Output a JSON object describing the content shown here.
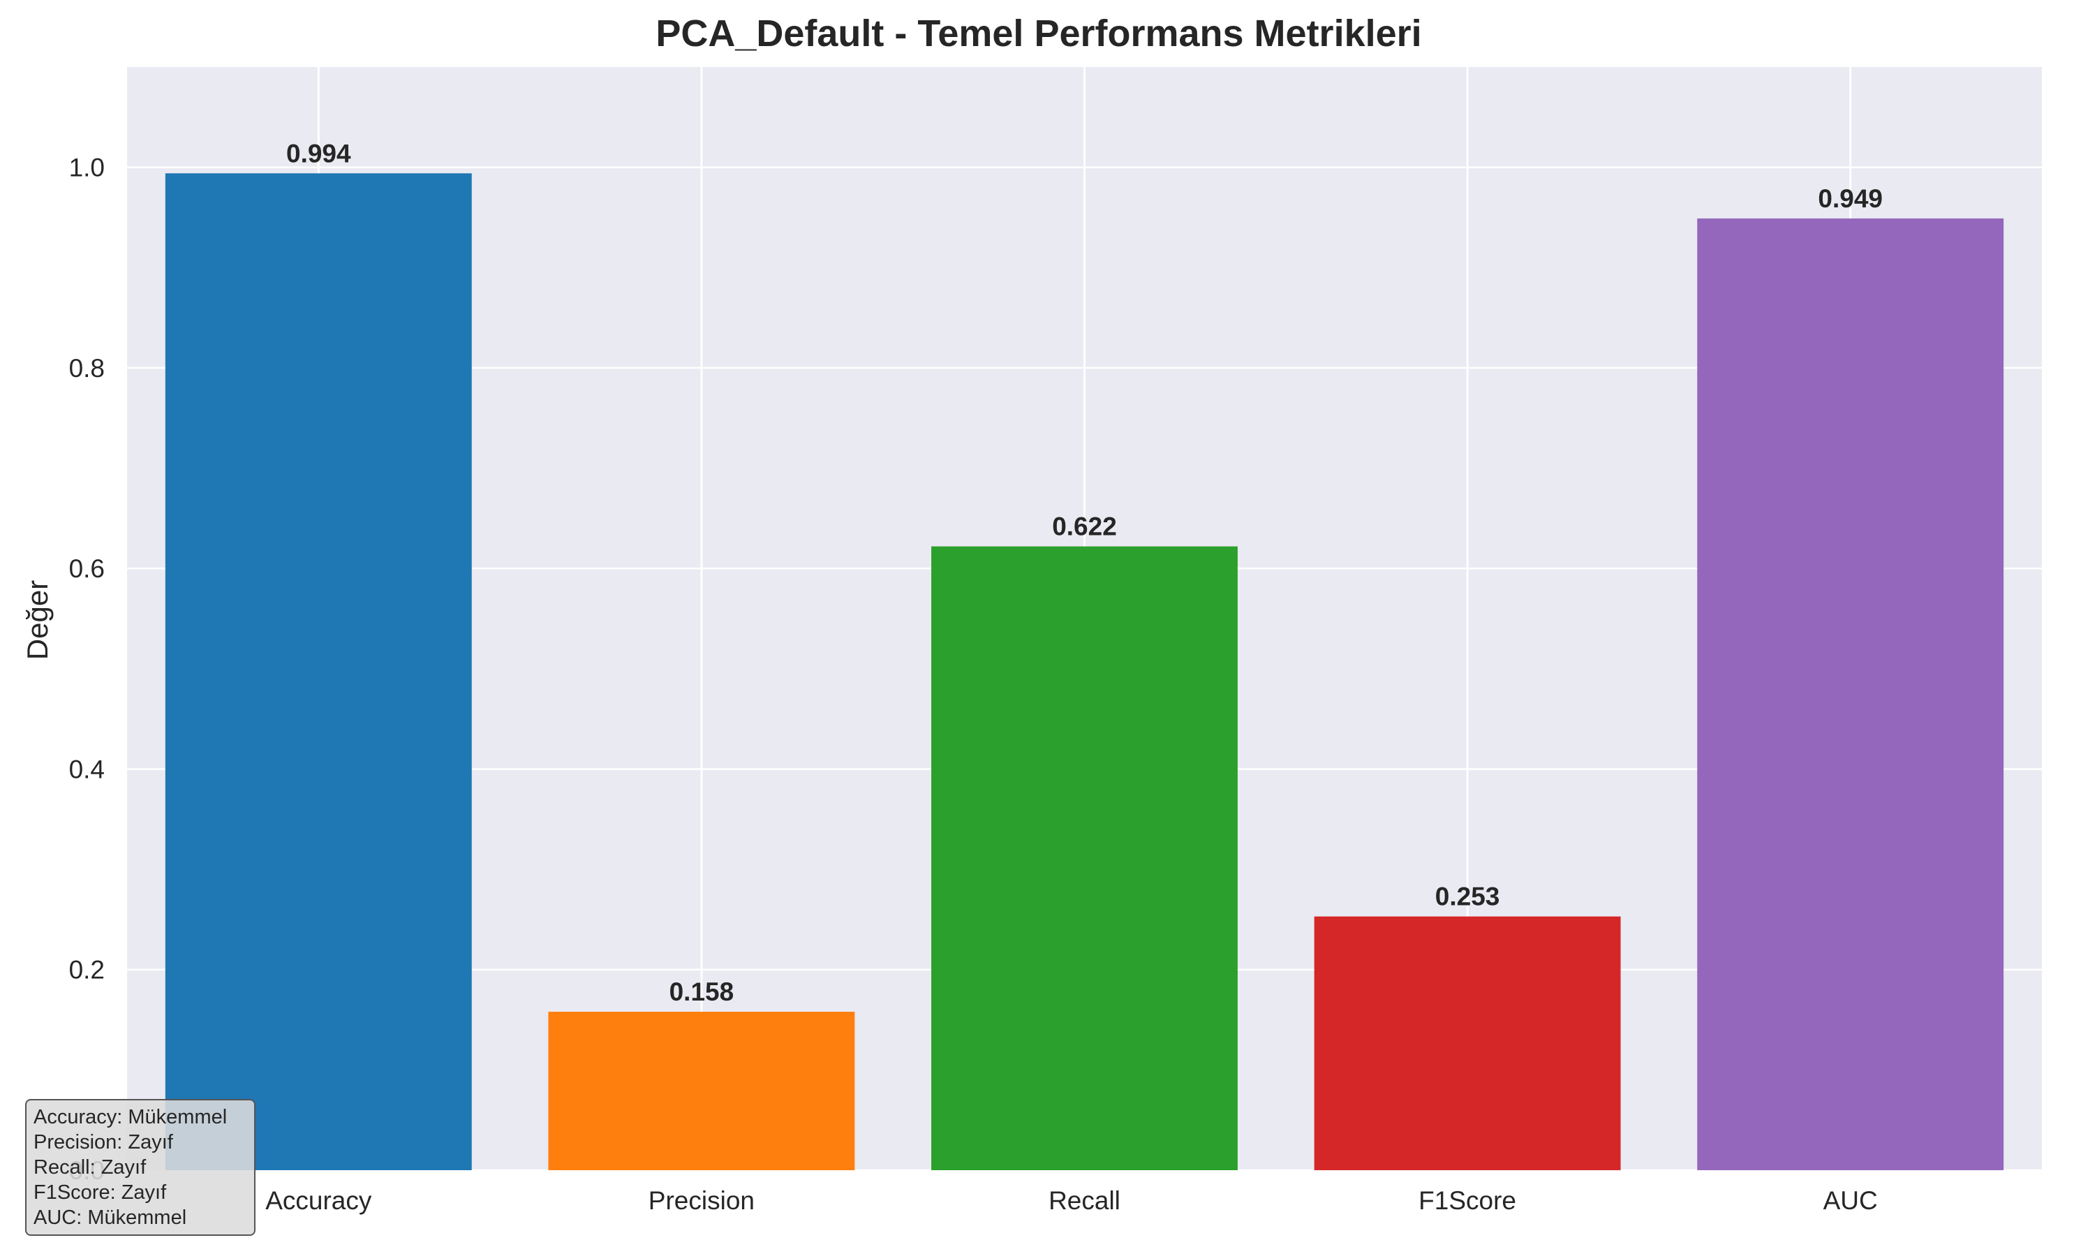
{
  "chart_data": {
    "type": "bar",
    "title": "PCA_Default - Temel Performans Metrikleri",
    "xlabel": "",
    "ylabel": "Değer",
    "categories": [
      "Accuracy",
      "Precision",
      "Recall",
      "F1Score",
      "AUC"
    ],
    "values": [
      0.994,
      0.158,
      0.622,
      0.253,
      0.949
    ],
    "value_labels": [
      "0.994",
      "0.158",
      "0.622",
      "0.253",
      "0.949"
    ],
    "colors": [
      "#1f77b4",
      "#ff7f0e",
      "#2ca02c",
      "#d62728",
      "#9467bd"
    ],
    "ylim": [
      0.0,
      1.1
    ],
    "yticks": [
      0.0,
      0.2,
      0.4,
      0.6,
      0.8,
      1.0
    ],
    "ytick_labels": [
      "0.0",
      "0.2",
      "0.4",
      "0.6",
      "0.8",
      "1.0"
    ],
    "grid": true,
    "background_color": "#eaeaf2",
    "grid_color": "#ffffff",
    "annotation_lines": [
      "Accuracy: Mükemmel",
      "Precision: Zayıf",
      "Recall: Zayıf",
      "F1Score: Zayıf",
      "AUC: Mükemmel"
    ],
    "annotation_placement": "bottom-left"
  }
}
